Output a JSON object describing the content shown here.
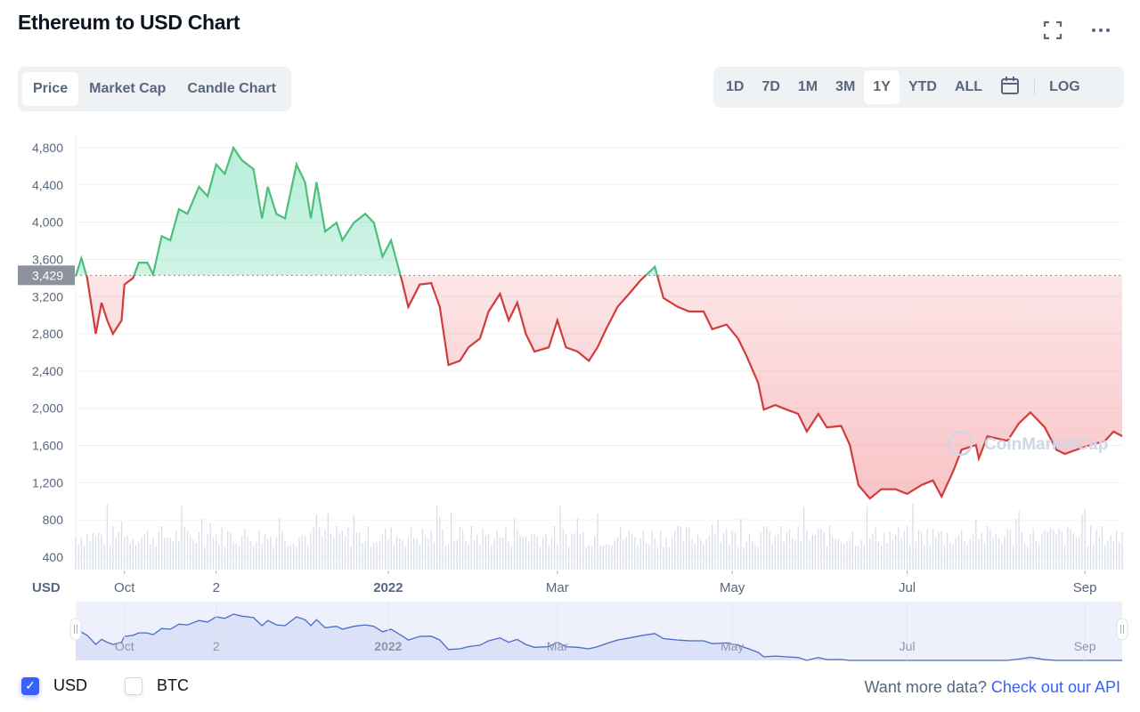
{
  "header": {
    "title": "Ethereum to USD Chart",
    "fullscreen_icon": "fullscreen-icon",
    "more_icon": "more-horizontal-icon"
  },
  "tabs": [
    {
      "label": "Price",
      "active": true
    },
    {
      "label": "Market Cap",
      "active": false
    },
    {
      "label": "Candle Chart",
      "active": false
    }
  ],
  "ranges": [
    {
      "label": "1D"
    },
    {
      "label": "7D"
    },
    {
      "label": "1M"
    },
    {
      "label": "3M"
    },
    {
      "label": "1Y",
      "active": true
    },
    {
      "label": "YTD"
    },
    {
      "label": "ALL"
    }
  ],
  "log_label": "LOG",
  "calendar_icon": "calendar-icon",
  "colors": {
    "up": "#16c784",
    "up_line": "#4cbf7a",
    "down": "#d13c3c",
    "accent": "#3861fb",
    "navigator": "#4a6bc9"
  },
  "chart_data": {
    "type": "line",
    "title": "Ethereum to USD Chart",
    "currency_label": "USD",
    "ylim": [
      400,
      4800
    ],
    "yticks": [
      "4,800",
      "4,400",
      "4,000",
      "3,600",
      "3,200",
      "2,800",
      "2,400",
      "2,000",
      "1,600",
      "1,200",
      "800",
      "400"
    ],
    "ytick_values": [
      4800,
      4400,
      4000,
      3600,
      3200,
      2800,
      2400,
      2000,
      1600,
      1200,
      800,
      400
    ],
    "baseline": {
      "value": 3429,
      "label": "3,429"
    },
    "xlim": [
      0,
      365
    ],
    "xticks": [
      {
        "day": 17,
        "label": "Oct",
        "bold": false
      },
      {
        "day": 49,
        "label": "2",
        "bold": false
      },
      {
        "day": 109,
        "label": "2022",
        "bold": true
      },
      {
        "day": 168,
        "label": "Mar",
        "bold": false
      },
      {
        "day": 229,
        "label": "May",
        "bold": false
      },
      {
        "day": 290,
        "label": "Jul",
        "bold": false
      },
      {
        "day": 352,
        "label": "Sep",
        "bold": false
      }
    ],
    "series": [
      {
        "name": "Price (USD)",
        "points": [
          [
            0,
            3420
          ],
          [
            2,
            3613
          ],
          [
            4,
            3400
          ],
          [
            7,
            2800
          ],
          [
            9,
            3135
          ],
          [
            11,
            2944
          ],
          [
            13,
            2800
          ],
          [
            16,
            2944
          ],
          [
            17,
            3330
          ],
          [
            20,
            3400
          ],
          [
            22,
            3565
          ],
          [
            25,
            3565
          ],
          [
            27,
            3440
          ],
          [
            30,
            3850
          ],
          [
            33,
            3805
          ],
          [
            36,
            4140
          ],
          [
            39,
            4090
          ],
          [
            43,
            4380
          ],
          [
            46,
            4280
          ],
          [
            49,
            4620
          ],
          [
            52,
            4520
          ],
          [
            55,
            4800
          ],
          [
            58,
            4665
          ],
          [
            62,
            4570
          ],
          [
            65,
            4040
          ],
          [
            67,
            4380
          ],
          [
            70,
            4090
          ],
          [
            73,
            4040
          ],
          [
            77,
            4620
          ],
          [
            80,
            4430
          ],
          [
            82,
            4040
          ],
          [
            84,
            4430
          ],
          [
            87,
            3900
          ],
          [
            91,
            3995
          ],
          [
            93,
            3805
          ],
          [
            97,
            3995
          ],
          [
            101,
            4090
          ],
          [
            104,
            3995
          ],
          [
            107,
            3630
          ],
          [
            110,
            3805
          ],
          [
            114,
            3345
          ],
          [
            116,
            3090
          ],
          [
            120,
            3330
          ],
          [
            124,
            3345
          ],
          [
            127,
            3090
          ],
          [
            130,
            2465
          ],
          [
            134,
            2510
          ],
          [
            137,
            2655
          ],
          [
            141,
            2750
          ],
          [
            144,
            3040
          ],
          [
            148,
            3230
          ],
          [
            151,
            2945
          ],
          [
            154,
            3135
          ],
          [
            157,
            2800
          ],
          [
            160,
            2610
          ],
          [
            165,
            2655
          ],
          [
            168,
            2945
          ],
          [
            171,
            2655
          ],
          [
            175,
            2610
          ],
          [
            179,
            2510
          ],
          [
            182,
            2655
          ],
          [
            185,
            2850
          ],
          [
            189,
            3090
          ],
          [
            193,
            3230
          ],
          [
            197,
            3375
          ],
          [
            202,
            3520
          ],
          [
            205,
            3185
          ],
          [
            210,
            3090
          ],
          [
            214,
            3040
          ],
          [
            219,
            3040
          ],
          [
            222,
            2850
          ],
          [
            227,
            2900
          ],
          [
            231,
            2750
          ],
          [
            234,
            2560
          ],
          [
            238,
            2275
          ],
          [
            240,
            1985
          ],
          [
            244,
            2035
          ],
          [
            248,
            1985
          ],
          [
            252,
            1940
          ],
          [
            255,
            1750
          ],
          [
            259,
            1940
          ],
          [
            262,
            1795
          ],
          [
            267,
            1810
          ],
          [
            270,
            1605
          ],
          [
            273,
            1175
          ],
          [
            277,
            1030
          ],
          [
            281,
            1130
          ],
          [
            286,
            1130
          ],
          [
            290,
            1080
          ],
          [
            295,
            1175
          ],
          [
            299,
            1225
          ],
          [
            302,
            1050
          ],
          [
            306,
            1320
          ],
          [
            309,
            1555
          ],
          [
            314,
            1605
          ],
          [
            315,
            1460
          ],
          [
            318,
            1700
          ],
          [
            325,
            1650
          ],
          [
            329,
            1840
          ],
          [
            333,
            1955
          ],
          [
            338,
            1795
          ],
          [
            342,
            1555
          ],
          [
            345,
            1510
          ],
          [
            349,
            1555
          ],
          [
            354,
            1605
          ],
          [
            359,
            1650
          ],
          [
            362,
            1750
          ],
          [
            365,
            1700
          ]
        ]
      }
    ]
  },
  "watermark": "CoinMarketCap",
  "legend": [
    {
      "label": "USD",
      "checked": true
    },
    {
      "label": "BTC",
      "checked": false
    }
  ],
  "footer": {
    "prefix": "Want more data?",
    "link": "Check out our API"
  }
}
